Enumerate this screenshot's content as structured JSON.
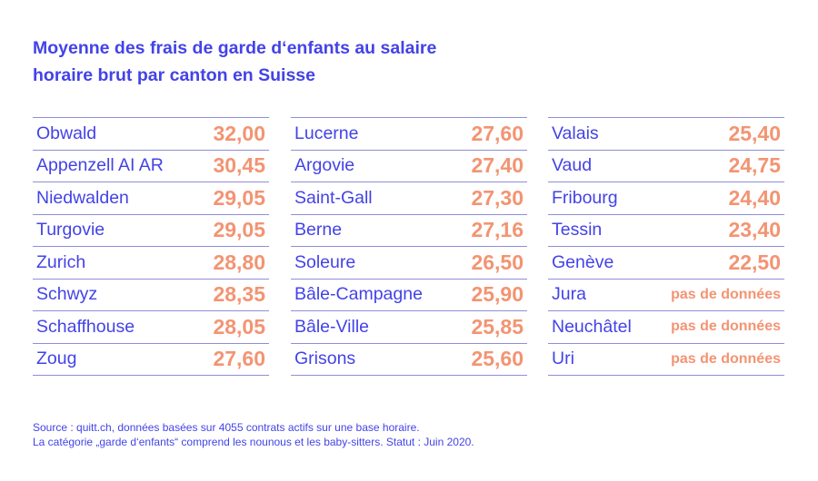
{
  "title_lines": [
    "Moyenne des frais de garde d‘enfants au salaire",
    "horaire brut par canton en Suisse"
  ],
  "colors": {
    "accent": "#4343e8",
    "value": "#f39472",
    "rule": "#8f8fd6"
  },
  "chart_data": {
    "type": "table",
    "title": "Moyenne des frais de garde d‘enfants au salaire horaire brut par canton en Suisse",
    "columns": [
      [
        {
          "canton": "Obwald",
          "value": "32,00"
        },
        {
          "canton": "Appenzell AI AR",
          "value": "30,45"
        },
        {
          "canton": "Niedwalden",
          "value": "29,05"
        },
        {
          "canton": "Turgovie",
          "value": "29,05"
        },
        {
          "canton": "Zurich",
          "value": "28,80"
        },
        {
          "canton": "Schwyz",
          "value": "28,35"
        },
        {
          "canton": "Schaffhouse",
          "value": "28,05"
        },
        {
          "canton": "Zoug",
          "value": "27,60"
        }
      ],
      [
        {
          "canton": "Lucerne",
          "value": "27,60"
        },
        {
          "canton": "Argovie",
          "value": "27,40"
        },
        {
          "canton": "Saint-Gall",
          "value": "27,30"
        },
        {
          "canton": "Berne",
          "value": "27,16"
        },
        {
          "canton": "Soleure",
          "value": "26,50"
        },
        {
          "canton": "Bâle-Campagne",
          "value": "25,90"
        },
        {
          "canton": "Bâle-Ville",
          "value": "25,85"
        },
        {
          "canton": "Grisons",
          "value": "25,60"
        }
      ],
      [
        {
          "canton": "Valais",
          "value": "25,40"
        },
        {
          "canton": "Vaud",
          "value": "24,75"
        },
        {
          "canton": "Fribourg",
          "value": "24,40"
        },
        {
          "canton": "Tessin",
          "value": "23,40"
        },
        {
          "canton": "Genève",
          "value": "22,50"
        },
        {
          "canton": "Jura",
          "value": "pas de données"
        },
        {
          "canton": "Neuchâtel",
          "value": "pas de données"
        },
        {
          "canton": "Uri",
          "value": "pas de données"
        }
      ]
    ]
  },
  "footer_lines": [
    "Source : quitt.ch, données basées sur 4055 contrats actifs sur une base horaire.",
    "La catégorie „garde d‘enfants“ comprend les nounous et les baby-sitters. Statut : Juin 2020."
  ]
}
